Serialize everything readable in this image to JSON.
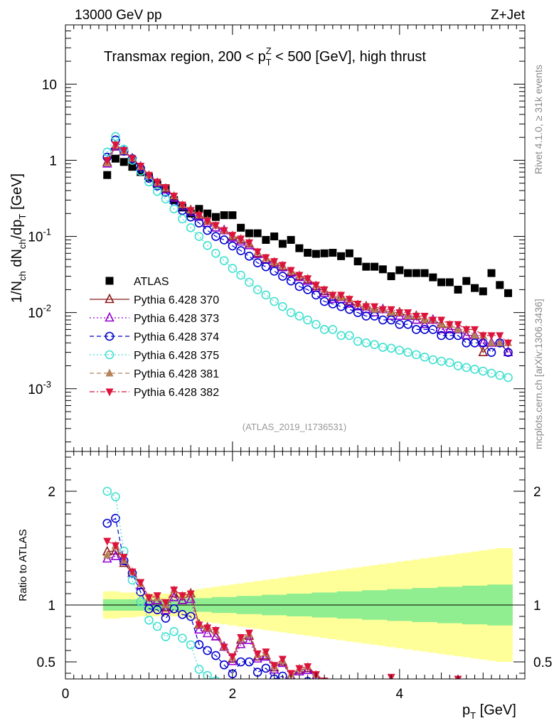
{
  "header": {
    "energy": "13000 GeV pp",
    "process": "Z+Jet",
    "panel_title_pre": "Transmax region, 200 < p",
    "panel_title_sup": "Z",
    "panel_title_sub": "T",
    "panel_title_post": " < 500 [GeV], high thrust",
    "analysis_id": "(ATLAS_2019_I1736531)",
    "rivet_note": "Rivet 4.1.0, ≥ 31k events",
    "mcplots_note": "mcplots.cern.ch [arXiv:1306.3436]"
  },
  "chart_data": {
    "type": "scatter",
    "xlabel": "p_T [GeV]",
    "ylabel": "1/N_ch dN_ch/dp_T [GeV]",
    "ratio_ylabel": "Ratio to ATLAS",
    "xlim": [
      0,
      5.5
    ],
    "ylim": [
      0.00015,
      60
    ],
    "ratio_ylim": [
      0.35,
      2.35
    ],
    "yscale": "log",
    "x_ticks": [
      "0",
      "2",
      "4"
    ],
    "y_ticks": [
      "10^-3",
      "10^-2",
      "10^-1",
      "1",
      "10"
    ],
    "ratio_ticks": [
      "0.5",
      "1",
      "2"
    ],
    "x": [
      0.5,
      0.6,
      0.7,
      0.8,
      0.9,
      1.0,
      1.1,
      1.2,
      1.3,
      1.4,
      1.5,
      1.6,
      1.7,
      1.8,
      1.9,
      2.0,
      2.1,
      2.2,
      2.3,
      2.4,
      2.5,
      2.6,
      2.7,
      2.8,
      2.9,
      3.0,
      3.1,
      3.2,
      3.3,
      3.4,
      3.5,
      3.6,
      3.7,
      3.8,
      3.9,
      4.0,
      4.1,
      4.2,
      4.3,
      4.4,
      4.5,
      4.6,
      4.7,
      4.8,
      4.9,
      5.0,
      5.1,
      5.2,
      5.3
    ],
    "series": [
      {
        "name": "ATLAS",
        "color": "#000000",
        "marker": "filled-square",
        "line": "none",
        "values": [
          0.64,
          1.05,
          0.95,
          0.82,
          0.7,
          0.6,
          0.48,
          0.43,
          0.3,
          0.24,
          0.2,
          0.23,
          0.2,
          0.18,
          0.19,
          0.19,
          0.13,
          0.11,
          0.11,
          0.09,
          0.1,
          0.08,
          0.09,
          0.07,
          0.061,
          0.059,
          0.06,
          0.061,
          0.055,
          0.06,
          0.047,
          0.04,
          0.04,
          0.037,
          0.03,
          0.036,
          0.033,
          0.033,
          0.033,
          0.029,
          0.025,
          0.025,
          0.02,
          0.026,
          0.021,
          0.019,
          0.033,
          0.023,
          0.018
        ]
      },
      {
        "name": "Pythia 6.428 370",
        "color": "#8b1a1a",
        "marker": "open-triangle-up",
        "line": "solid",
        "values": [
          0.94,
          1.55,
          1.3,
          1.05,
          0.82,
          0.62,
          0.5,
          0.42,
          0.33,
          0.25,
          0.22,
          0.19,
          0.16,
          0.13,
          0.12,
          0.1,
          0.09,
          0.08,
          0.06,
          0.05,
          0.045,
          0.04,
          0.034,
          0.03,
          0.027,
          0.022,
          0.019,
          0.016,
          0.016,
          0.014,
          0.012,
          0.012,
          0.011,
          0.011,
          0.01,
          0.01,
          0.009,
          0.009,
          0.008,
          0.008,
          0.007,
          0.006,
          0.006,
          0.005,
          0.005,
          0.003,
          0.004,
          0.004,
          0.003
        ]
      },
      {
        "name": "Pythia 6.428 373",
        "color": "#9400d3",
        "marker": "open-triangle-up",
        "line": "dotted",
        "values": [
          0.9,
          1.5,
          1.32,
          1.05,
          0.82,
          0.62,
          0.5,
          0.41,
          0.32,
          0.25,
          0.21,
          0.18,
          0.15,
          0.13,
          0.12,
          0.096,
          0.085,
          0.076,
          0.058,
          0.049,
          0.043,
          0.039,
          0.033,
          0.029,
          0.026,
          0.021,
          0.018,
          0.015,
          0.015,
          0.013,
          0.012,
          0.011,
          0.01,
          0.011,
          0.009,
          0.009,
          0.009,
          0.008,
          0.007,
          0.008,
          0.006,
          0.006,
          0.006,
          0.005,
          0.005,
          0.004,
          0.004,
          0.004,
          0.003
        ]
      },
      {
        "name": "Pythia 6.428 374",
        "color": "#0000cd",
        "marker": "open-circle",
        "line": "dashed",
        "values": [
          1.1,
          1.85,
          1.32,
          1.05,
          0.78,
          0.58,
          0.46,
          0.38,
          0.29,
          0.22,
          0.18,
          0.15,
          0.12,
          0.1,
          0.09,
          0.075,
          0.065,
          0.055,
          0.045,
          0.04,
          0.035,
          0.03,
          0.026,
          0.022,
          0.02,
          0.017,
          0.014,
          0.013,
          0.012,
          0.011,
          0.01,
          0.009,
          0.009,
          0.008,
          0.008,
          0.007,
          0.007,
          0.006,
          0.006,
          0.006,
          0.005,
          0.005,
          0.005,
          0.004,
          0.004,
          0.004,
          0.003,
          0.004,
          0.003
        ]
      },
      {
        "name": "Pythia 6.428 375",
        "color": "#40e0d0",
        "marker": "open-circle",
        "line": "dotted",
        "values": [
          1.28,
          2.05,
          1.4,
          1.0,
          0.72,
          0.52,
          0.39,
          0.31,
          0.23,
          0.17,
          0.13,
          0.1,
          0.076,
          0.06,
          0.048,
          0.038,
          0.031,
          0.025,
          0.02,
          0.017,
          0.014,
          0.012,
          0.01,
          0.009,
          0.008,
          0.007,
          0.006,
          0.006,
          0.005,
          0.005,
          0.0042,
          0.004,
          0.0038,
          0.0035,
          0.0034,
          0.0032,
          0.003,
          0.0028,
          0.0026,
          0.0024,
          0.0023,
          0.0022,
          0.002,
          0.0019,
          0.0018,
          0.0017,
          0.0016,
          0.0015,
          0.0014
        ]
      },
      {
        "name": "Pythia 6.428 381",
        "color": "#b5835a",
        "marker": "filled-triangle-up",
        "line": "dashed",
        "values": [
          0.92,
          1.6,
          1.32,
          1.06,
          0.83,
          0.64,
          0.51,
          0.43,
          0.34,
          0.26,
          0.22,
          0.19,
          0.16,
          0.14,
          0.12,
          0.102,
          0.092,
          0.082,
          0.062,
          0.052,
          0.046,
          0.041,
          0.035,
          0.031,
          0.028,
          0.023,
          0.02,
          0.017,
          0.016,
          0.015,
          0.013,
          0.012,
          0.011,
          0.011,
          0.01,
          0.01,
          0.009,
          0.009,
          0.008,
          0.008,
          0.007,
          0.007,
          0.006,
          0.006,
          0.005,
          0.005,
          0.004,
          0.004,
          0.004
        ]
      },
      {
        "name": "Pythia 6.428 382",
        "color": "#dc143c",
        "marker": "filled-triangle-down",
        "line": "dashdot",
        "values": [
          1.0,
          1.6,
          1.35,
          1.06,
          0.84,
          0.64,
          0.52,
          0.44,
          0.34,
          0.26,
          0.22,
          0.19,
          0.16,
          0.14,
          0.12,
          0.104,
          0.093,
          0.083,
          0.063,
          0.053,
          0.047,
          0.042,
          0.036,
          0.031,
          0.028,
          0.023,
          0.02,
          0.017,
          0.017,
          0.015,
          0.013,
          0.012,
          0.012,
          0.011,
          0.011,
          0.01,
          0.01,
          0.009,
          0.009,
          0.008,
          0.008,
          0.007,
          0.007,
          0.006,
          0.006,
          0.005,
          0.005,
          0.005,
          0.004
        ]
      }
    ],
    "ratio_band": {
      "inner_color": "#90ee90",
      "outer_color": "#ffff99",
      "inner_halfwidth": [
        0.05,
        0.05,
        0.05,
        0.05,
        0.05,
        0.05,
        0.05,
        0.05,
        0.05,
        0.05,
        0.06,
        0.06,
        0.06,
        0.07,
        0.07,
        0.07,
        0.08,
        0.08,
        0.08,
        0.09,
        0.09,
        0.09,
        0.1,
        0.1,
        0.1,
        0.11,
        0.11,
        0.11,
        0.12,
        0.12,
        0.12,
        0.13,
        0.13,
        0.13,
        0.14,
        0.14,
        0.14,
        0.15,
        0.15,
        0.15,
        0.16,
        0.16,
        0.16,
        0.17,
        0.17,
        0.17,
        0.18,
        0.18,
        0.18
      ],
      "outer_halfwidth": [
        0.12,
        0.12,
        0.11,
        0.11,
        0.1,
        0.1,
        0.1,
        0.1,
        0.1,
        0.1,
        0.12,
        0.14,
        0.15,
        0.16,
        0.17,
        0.18,
        0.19,
        0.2,
        0.21,
        0.22,
        0.23,
        0.24,
        0.25,
        0.26,
        0.27,
        0.28,
        0.29,
        0.3,
        0.31,
        0.32,
        0.33,
        0.34,
        0.35,
        0.36,
        0.37,
        0.38,
        0.39,
        0.4,
        0.41,
        0.42,
        0.43,
        0.44,
        0.45,
        0.46,
        0.47,
        0.48,
        0.49,
        0.5,
        0.5
      ]
    }
  }
}
